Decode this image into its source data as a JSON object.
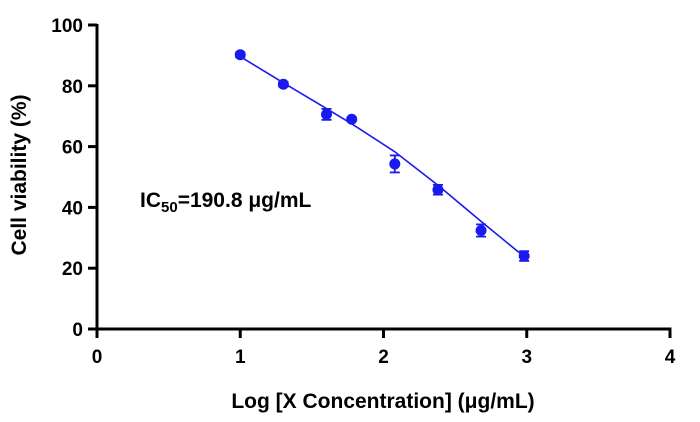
{
  "chart_data": {
    "type": "scatter",
    "title": "",
    "xlabel": "Log [X Concentration] (μg/mL)",
    "ylabel": "Cell viability (%)",
    "xlim": [
      0,
      4
    ],
    "ylim": [
      0,
      100
    ],
    "x_ticks": [
      0,
      1,
      2,
      3,
      4
    ],
    "y_ticks": [
      0,
      20,
      40,
      60,
      80,
      100
    ],
    "x_tick_labels": [
      "0",
      "1",
      "2",
      "3",
      "4"
    ],
    "y_tick_labels": [
      "0",
      "20",
      "40",
      "60",
      "80",
      "100"
    ],
    "grid": false,
    "legend": "none",
    "marker_color": "#1a1aee",
    "fit_line_color": "#1a1aee",
    "points": [
      {
        "x": 1.0,
        "y": 90.2,
        "err": 0.8
      },
      {
        "x": 1.301,
        "y": 80.5,
        "err": 0.8
      },
      {
        "x": 1.602,
        "y": 70.6,
        "err": 1.8
      },
      {
        "x": 1.778,
        "y": 69.0,
        "err": 0.6
      },
      {
        "x": 2.079,
        "y": 54.3,
        "err": 2.8
      },
      {
        "x": 2.38,
        "y": 45.8,
        "err": 1.6
      },
      {
        "x": 2.681,
        "y": 32.4,
        "err": 2.0
      },
      {
        "x": 2.982,
        "y": 24.0,
        "err": 1.6
      }
    ],
    "fit_line": {
      "x": [
        1.0,
        1.301,
        1.602,
        1.778,
        2.079,
        2.38,
        2.681,
        2.982
      ],
      "y": [
        89.6,
        81.0,
        72.5,
        67.5,
        58.3,
        47.3,
        35.4,
        23.8
      ]
    },
    "annotation": {
      "prefix": "IC",
      "subscript": "50",
      "suffix": "=190.8 μg/mL"
    }
  }
}
